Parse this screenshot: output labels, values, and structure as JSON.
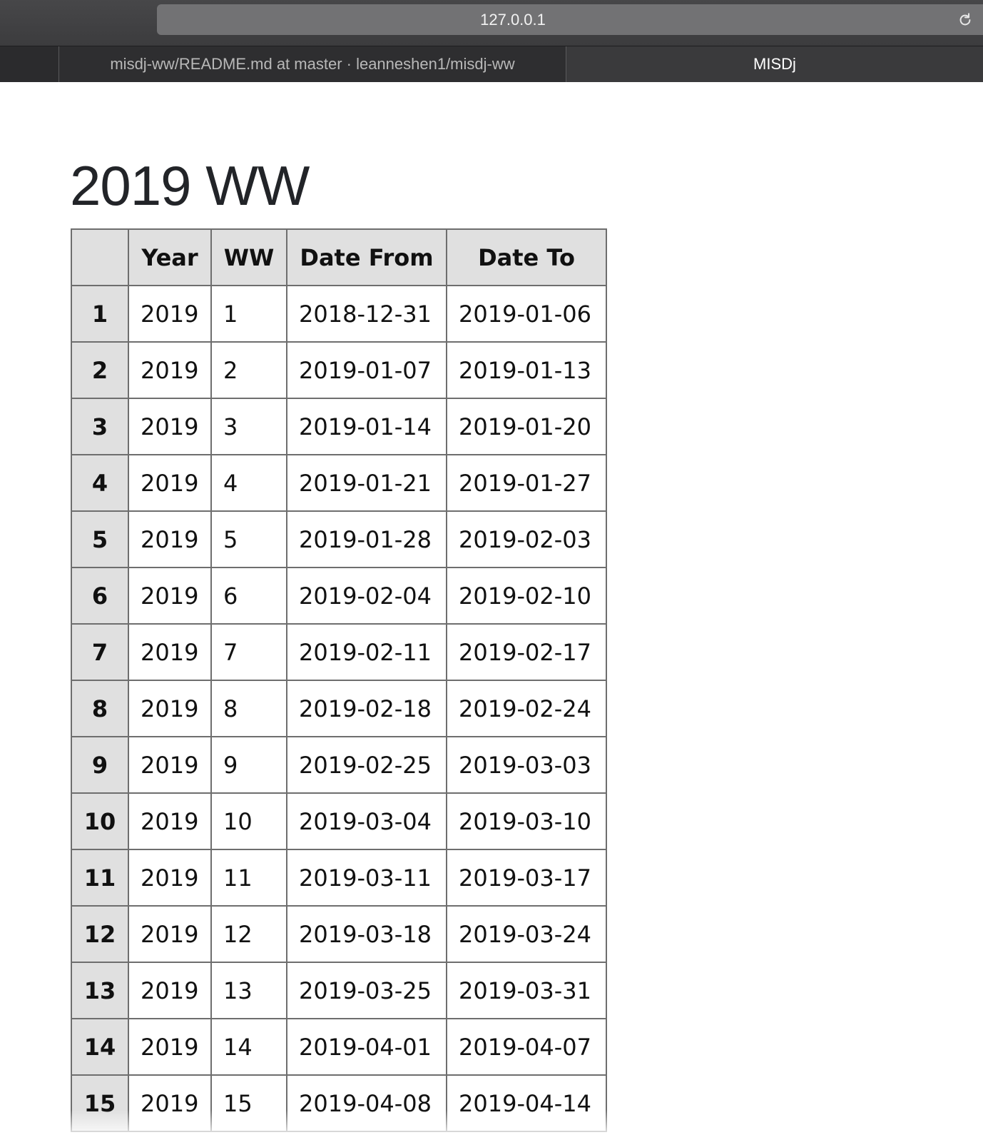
{
  "browser": {
    "address": "127.0.0.1",
    "tabs": [
      {
        "title": "misdj-ww/README.md at master · leanneshen1/misdj-ww",
        "active": false
      },
      {
        "title": "MISDj",
        "active": true
      }
    ]
  },
  "page": {
    "title": "2019 WW",
    "table": {
      "headers": [
        "",
        "Year",
        "WW",
        "Date From",
        "Date To"
      ],
      "rows": [
        {
          "index": "1",
          "year": "2019",
          "ww": "1",
          "from": "2018-12-31",
          "to": "2019-01-06"
        },
        {
          "index": "2",
          "year": "2019",
          "ww": "2",
          "from": "2019-01-07",
          "to": "2019-01-13"
        },
        {
          "index": "3",
          "year": "2019",
          "ww": "3",
          "from": "2019-01-14",
          "to": "2019-01-20"
        },
        {
          "index": "4",
          "year": "2019",
          "ww": "4",
          "from": "2019-01-21",
          "to": "2019-01-27"
        },
        {
          "index": "5",
          "year": "2019",
          "ww": "5",
          "from": "2019-01-28",
          "to": "2019-02-03"
        },
        {
          "index": "6",
          "year": "2019",
          "ww": "6",
          "from": "2019-02-04",
          "to": "2019-02-10"
        },
        {
          "index": "7",
          "year": "2019",
          "ww": "7",
          "from": "2019-02-11",
          "to": "2019-02-17"
        },
        {
          "index": "8",
          "year": "2019",
          "ww": "8",
          "from": "2019-02-18",
          "to": "2019-02-24"
        },
        {
          "index": "9",
          "year": "2019",
          "ww": "9",
          "from": "2019-02-25",
          "to": "2019-03-03"
        },
        {
          "index": "10",
          "year": "2019",
          "ww": "10",
          "from": "2019-03-04",
          "to": "2019-03-10"
        },
        {
          "index": "11",
          "year": "2019",
          "ww": "11",
          "from": "2019-03-11",
          "to": "2019-03-17"
        },
        {
          "index": "12",
          "year": "2019",
          "ww": "12",
          "from": "2019-03-18",
          "to": "2019-03-24"
        },
        {
          "index": "13",
          "year": "2019",
          "ww": "13",
          "from": "2019-03-25",
          "to": "2019-03-31"
        },
        {
          "index": "14",
          "year": "2019",
          "ww": "14",
          "from": "2019-04-01",
          "to": "2019-04-07"
        },
        {
          "index": "15",
          "year": "2019",
          "ww": "15",
          "from": "2019-04-08",
          "to": "2019-04-14"
        }
      ]
    }
  },
  "icons": {
    "reload": "reload-icon"
  }
}
